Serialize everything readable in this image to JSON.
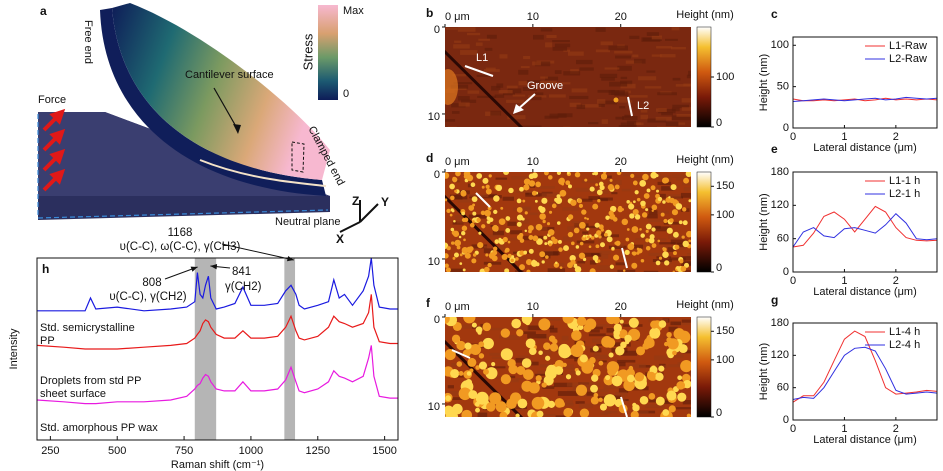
{
  "panel_a": {
    "label": "a",
    "free_end": "Free end",
    "stress": "Stress",
    "max": "Max",
    "zero": "0",
    "surface": "Cantilever surface",
    "force": "Force",
    "clamped": "Clamped end",
    "neutral": "Neutral plane",
    "axes": [
      "Z",
      "Y",
      "X"
    ]
  },
  "chart_data": [
    {
      "type": "spectra",
      "label": "h",
      "xlabel": "Raman shift (cm⁻¹)",
      "ylabel": "Intensity",
      "xlim": [
        200,
        1550
      ],
      "xticks": [
        250,
        500,
        750,
        1000,
        1250,
        1500
      ],
      "ylim": [
        0,
        100
      ],
      "bands": [
        [
          790,
          870
        ],
        [
          1125,
          1165
        ]
      ],
      "band_color": "#b5b5b5",
      "x": [
        200,
        300,
        380,
        400,
        420,
        500,
        600,
        700,
        760,
        790,
        800,
        810,
        820,
        830,
        841,
        850,
        870,
        900,
        940,
        970,
        1000,
        1050,
        1100,
        1130,
        1150,
        1168,
        1180,
        1200,
        1250,
        1290,
        1310,
        1330,
        1350,
        1380,
        1420,
        1440,
        1450,
        1460,
        1480,
        1520,
        1550
      ],
      "series": [
        {
          "name": "Std. semicrystalline PP",
          "color": "#1a1ae0",
          "values": [
            71,
            71,
            71,
            78,
            72,
            73,
            71,
            72,
            73,
            76,
            92,
            80,
            78,
            85,
            90,
            78,
            72,
            73,
            75,
            84,
            74,
            74,
            75,
            82,
            85,
            80,
            74,
            72,
            74,
            76,
            88,
            78,
            80,
            74,
            82,
            90,
            100,
            85,
            73,
            72,
            72
          ]
        },
        {
          "name": "Droplets from std PP sheet surface",
          "color": "#e81a1a",
          "values": [
            52,
            51,
            50,
            50,
            50,
            50,
            51,
            52,
            53,
            56,
            58,
            60,
            64,
            66,
            65,
            62,
            58,
            56,
            56,
            60,
            56,
            56,
            57,
            62,
            68,
            60,
            56,
            55,
            57,
            62,
            68,
            65,
            64,
            62,
            64,
            70,
            80,
            62,
            54,
            53,
            53
          ]
        },
        {
          "name": "Std. amorphous PP wax",
          "color": "#e81ae0",
          "values": [
            22,
            21,
            20,
            20,
            20,
            21,
            21,
            22,
            24,
            28,
            30,
            31,
            34,
            36,
            35,
            32,
            28,
            27,
            27,
            32,
            27,
            27,
            28,
            33,
            40,
            32,
            27,
            26,
            28,
            32,
            38,
            35,
            34,
            32,
            35,
            45,
            52,
            35,
            24,
            23,
            23
          ]
        }
      ],
      "annotations": [
        "1168",
        "υ(C-C), ω(C-C), γ(CH3)",
        "808",
        "υ(C-C), γ(CH2)",
        "841",
        "γ(CH2)"
      ]
    },
    {
      "type": "line",
      "label": "c",
      "xlabel": "Lateral distance (μm)",
      "ylabel": "Height (nm)",
      "xlim": [
        0,
        2.8
      ],
      "xticks": [
        0,
        1,
        2
      ],
      "ylim": [
        0,
        110
      ],
      "yticks": [
        0,
        50,
        100
      ],
      "x": [
        0,
        0.2,
        0.4,
        0.6,
        0.8,
        1.0,
        1.2,
        1.4,
        1.6,
        1.8,
        2.0,
        2.2,
        2.4,
        2.6,
        2.8
      ],
      "series": [
        {
          "name": "L1-Raw",
          "color": "#f03030",
          "values": [
            35,
            33,
            33,
            34,
            33,
            34,
            35,
            33,
            34,
            36,
            34,
            35,
            34,
            35,
            34
          ]
        },
        {
          "name": "L2-Raw",
          "color": "#3030e0",
          "values": [
            32,
            33,
            34,
            35,
            34,
            33,
            34,
            35,
            36,
            34,
            35,
            37,
            36,
            35,
            36
          ]
        }
      ]
    },
    {
      "type": "line",
      "label": "e",
      "xlabel": "Lateral distance (μm)",
      "ylabel": "Height (nm)",
      "xlim": [
        0,
        2.8
      ],
      "xticks": [
        0,
        1,
        2
      ],
      "ylim": [
        0,
        180
      ],
      "yticks": [
        0,
        60,
        120,
        180
      ],
      "x": [
        0,
        0.2,
        0.4,
        0.6,
        0.8,
        1.0,
        1.2,
        1.4,
        1.6,
        1.8,
        2.0,
        2.2,
        2.4,
        2.6,
        2.8
      ],
      "series": [
        {
          "name": "L1-1 h",
          "color": "#f03030",
          "values": [
            45,
            48,
            70,
            100,
            108,
            95,
            72,
            95,
            118,
            108,
            80,
            62,
            57,
            56,
            57
          ]
        },
        {
          "name": "L2-1 h",
          "color": "#3030e0",
          "values": [
            45,
            72,
            80,
            65,
            62,
            78,
            80,
            75,
            70,
            85,
            105,
            88,
            60,
            58,
            60
          ]
        }
      ]
    },
    {
      "type": "line",
      "label": "g",
      "xlabel": "Lateral distance (μm)",
      "ylabel": "Height (nm)",
      "xlim": [
        0,
        2.8
      ],
      "xticks": [
        0,
        1,
        2
      ],
      "ylim": [
        0,
        180
      ],
      "yticks": [
        0,
        60,
        120,
        180
      ],
      "x": [
        0,
        0.2,
        0.4,
        0.6,
        0.8,
        1.0,
        1.2,
        1.4,
        1.6,
        1.8,
        2.0,
        2.2,
        2.4,
        2.6,
        2.8
      ],
      "series": [
        {
          "name": "L1-4 h",
          "color": "#f03030",
          "values": [
            33,
            45,
            45,
            70,
            110,
            150,
            165,
            155,
            110,
            60,
            48,
            50,
            52,
            55,
            53
          ]
        },
        {
          "name": "L2-4 h",
          "color": "#3030e0",
          "values": [
            38,
            42,
            40,
            60,
            90,
            120,
            133,
            135,
            128,
            95,
            55,
            48,
            50,
            52,
            50
          ]
        }
      ]
    }
  ],
  "afm_images": [
    {
      "label": "b",
      "xlim": [
        0,
        28
      ],
      "xticks": [
        {
          "value": 0,
          "label": "0 μm"
        },
        10,
        20
      ],
      "ylim": [
        0,
        11.5
      ],
      "yticks": [
        0,
        10
      ],
      "colorbar_label": "Height (nm)",
      "clim": [
        0,
        200
      ],
      "cticks": [
        0,
        100
      ],
      "annotations": [
        "L1",
        "Groove",
        "L2"
      ]
    },
    {
      "label": "d",
      "xlim": [
        0,
        28
      ],
      "xticks": [
        {
          "value": 0,
          "label": "0 μm"
        },
        10,
        20
      ],
      "ylim": [
        0,
        11.5
      ],
      "yticks": [
        0,
        10
      ],
      "colorbar_label": "Height (nm)",
      "clim": [
        0,
        175
      ],
      "cticks": [
        0,
        100,
        150
      ]
    },
    {
      "label": "f",
      "xlim": [
        0,
        28
      ],
      "xticks": [
        {
          "value": 0,
          "label": "0 μm"
        },
        10,
        20
      ],
      "ylim": [
        0,
        11.5
      ],
      "yticks": [
        0,
        10
      ],
      "colorbar_label": "Height (nm)",
      "clim": [
        0,
        175
      ],
      "cticks": [
        0,
        100,
        150
      ]
    }
  ]
}
